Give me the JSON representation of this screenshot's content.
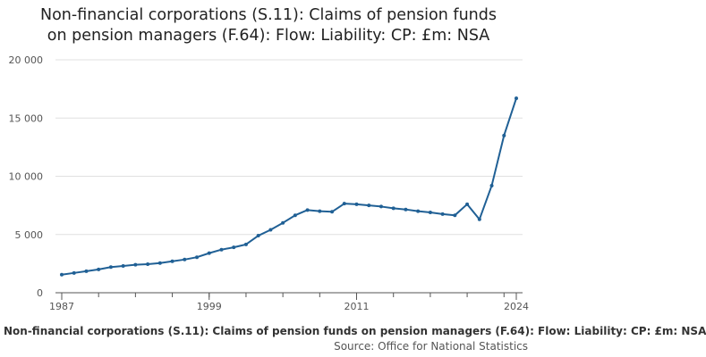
{
  "chart_data": {
    "type": "line",
    "title_line1": "Non-financial corporations (S.11): Claims of pension funds",
    "title_line2": "on pension managers (F.64): Flow: Liability: CP: £m: NSA",
    "xlabel": "",
    "ylabel": "",
    "xlim": [
      1987,
      2024
    ],
    "ylim": [
      0,
      20000
    ],
    "x_ticks": [
      "1987",
      "1999",
      "2011",
      "2024"
    ],
    "y_ticks": [
      "0",
      "5 000",
      "10 000",
      "15 000",
      "20 000"
    ],
    "y_tick_values": [
      0,
      5000,
      10000,
      15000,
      20000
    ],
    "x_tick_values": [
      1987,
      1999,
      2011,
      2024
    ],
    "grid": "horizontal",
    "line_color": "#206095",
    "series": [
      {
        "x": [
          1987,
          1988,
          1989,
          1990,
          1991,
          1992,
          1993,
          1994,
          1995,
          1996,
          1997,
          1998,
          1999,
          2000,
          2001,
          2002,
          2003,
          2004,
          2005,
          2006,
          2007,
          2008,
          2009,
          2010,
          2011,
          2012,
          2013,
          2014,
          2015,
          2016,
          2017,
          2018,
          2019,
          2020,
          2021,
          2022,
          2023,
          2024
        ],
        "values": [
          1550,
          1700,
          1850,
          2000,
          2200,
          2300,
          2400,
          2450,
          2550,
          2700,
          2850,
          3050,
          3400,
          3700,
          3900,
          4150,
          4900,
          5400,
          6000,
          6650,
          7100,
          7000,
          6950,
          7650,
          7600,
          7500,
          7400,
          7250,
          7150,
          7000,
          6900,
          6750,
          6650,
          7600,
          6300,
          9200,
          13500,
          16700
        ]
      }
    ]
  },
  "footer": {
    "series_name": "Non-financial corporations (S.11): Claims of pension funds on pension managers (F.64): Flow: Liability: CP: £m: NSA",
    "source": "Source: Office for National Statistics"
  }
}
